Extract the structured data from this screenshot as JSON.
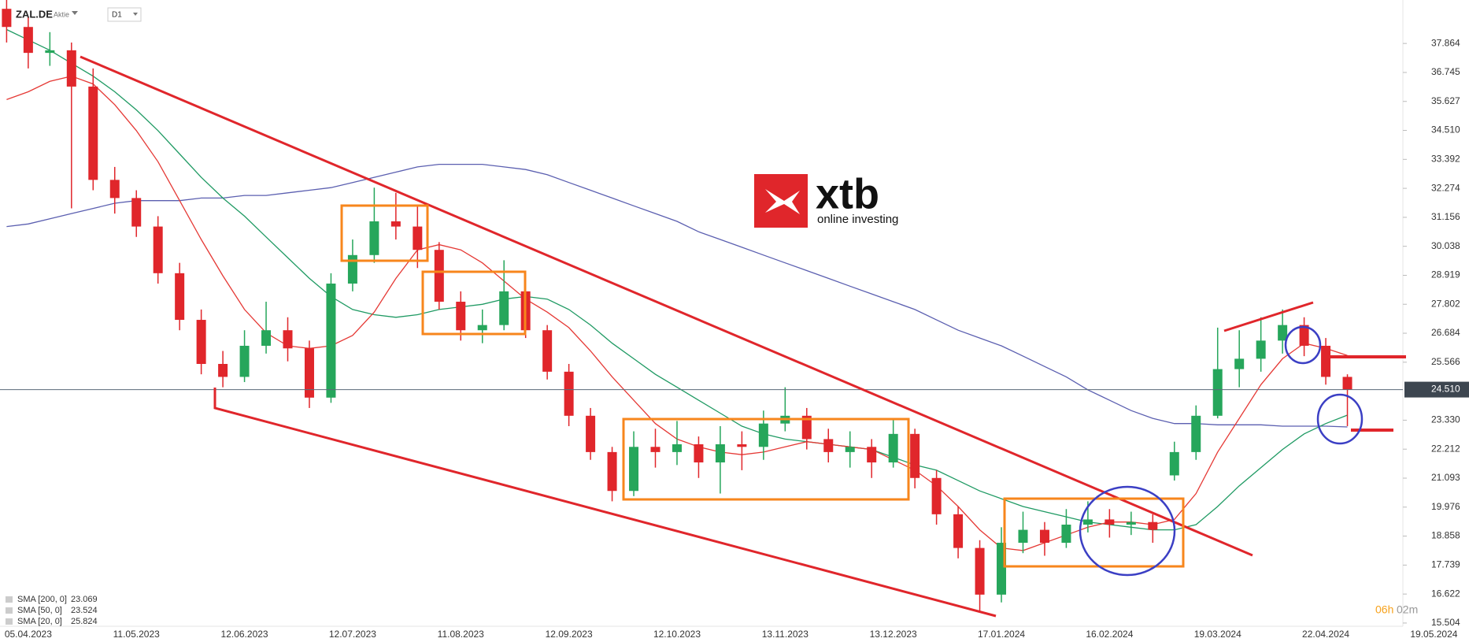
{
  "header": {
    "symbol": "ZAL.DE",
    "kind": "Aktie",
    "timeframe": "D1"
  },
  "logo": {
    "name": "xtb",
    "tagline": "online investing"
  },
  "countdown": {
    "hours": "06h",
    "minutes": "02m"
  },
  "chart_data": {
    "type": "candlestick",
    "categories": [
      null,
      "05.04.2023",
      null,
      null,
      null,
      null,
      "11.05.2023",
      null,
      null,
      null,
      null,
      "12.06.2023",
      null,
      null,
      null,
      null,
      "12.07.2023",
      null,
      null,
      null,
      null,
      "11.08.2023",
      null,
      null,
      null,
      null,
      "12.09.2023",
      null,
      null,
      null,
      null,
      "12.10.2023",
      null,
      null,
      null,
      null,
      "13.11.2023",
      null,
      null,
      null,
      null,
      "13.12.2023",
      null,
      null,
      null,
      null,
      "17.01.2024",
      null,
      null,
      null,
      null,
      "16.02.2024",
      null,
      null,
      null,
      null,
      "19.03.2024",
      null,
      null,
      null,
      null,
      "22.04.2024",
      null,
      null,
      null,
      null,
      "19.05.2024"
    ],
    "open": [
      39.2,
      38.5,
      37.5,
      37.6,
      36.2,
      32.6,
      31.9,
      30.8,
      29.0,
      27.2,
      25.5,
      25.0,
      26.2,
      26.8,
      26.1,
      24.2,
      28.6,
      29.7,
      31.0,
      30.8,
      29.9,
      27.9,
      26.8,
      27.0,
      28.3,
      26.8,
      25.2,
      23.5,
      22.1,
      20.6,
      22.3,
      22.1,
      22.4,
      21.7,
      22.4,
      22.3,
      23.2,
      23.5,
      22.6,
      22.1,
      22.3,
      21.7,
      22.8,
      21.1,
      19.7,
      18.4,
      16.6,
      18.6,
      19.1,
      18.6,
      19.3,
      19.5,
      19.3,
      19.4,
      21.2,
      22.1,
      23.5,
      25.3,
      25.7,
      26.4,
      27.0,
      26.2,
      25.0,
      null,
      null,
      null,
      null
    ],
    "high": [
      39.6,
      38.9,
      38.3,
      37.9,
      36.9,
      33.1,
      32.2,
      31.2,
      29.4,
      27.6,
      26.0,
      26.8,
      27.9,
      27.3,
      26.4,
      29.0,
      30.3,
      32.3,
      32.1,
      31.6,
      30.2,
      28.3,
      27.6,
      29.5,
      28.6,
      27.0,
      25.5,
      23.8,
      22.3,
      22.9,
      23.0,
      23.3,
      22.7,
      23.1,
      22.9,
      23.7,
      24.6,
      23.8,
      23.0,
      22.9,
      22.6,
      23.4,
      23.0,
      21.4,
      20.0,
      18.7,
      19.2,
      19.8,
      19.4,
      19.9,
      20.2,
      19.9,
      19.8,
      19.7,
      22.5,
      23.9,
      26.9,
      26.8,
      27.3,
      27.6,
      27.3,
      26.5,
      25.1,
      null,
      null,
      null,
      null
    ],
    "low": [
      37.9,
      36.9,
      37.0,
      31.5,
      32.2,
      31.3,
      30.4,
      28.6,
      26.8,
      25.1,
      24.6,
      24.8,
      25.9,
      25.6,
      23.8,
      24.0,
      28.3,
      29.4,
      30.3,
      29.2,
      27.6,
      26.4,
      26.3,
      26.8,
      26.5,
      24.9,
      23.1,
      21.8,
      20.2,
      20.4,
      21.5,
      21.6,
      21.1,
      20.5,
      21.4,
      21.8,
      22.9,
      22.2,
      21.7,
      21.5,
      21.1,
      21.5,
      20.7,
      19.3,
      18.0,
      15.9,
      16.3,
      18.2,
      18.1,
      18.4,
      19.0,
      18.8,
      18.9,
      18.6,
      21.0,
      21.8,
      23.4,
      24.6,
      25.2,
      25.9,
      25.8,
      24.7,
      23.1,
      null,
      null,
      null,
      null
    ],
    "close": [
      38.5,
      37.5,
      37.6,
      36.2,
      32.6,
      31.9,
      30.8,
      29.0,
      27.2,
      25.5,
      25.0,
      26.2,
      26.8,
      26.1,
      24.2,
      28.6,
      29.7,
      31.0,
      30.8,
      29.9,
      27.9,
      26.8,
      27.0,
      28.3,
      26.8,
      25.2,
      23.5,
      22.1,
      20.6,
      22.3,
      22.1,
      22.4,
      21.7,
      22.4,
      22.3,
      23.2,
      23.5,
      22.6,
      22.1,
      22.3,
      21.7,
      22.8,
      21.1,
      19.7,
      18.4,
      16.6,
      18.6,
      19.1,
      18.6,
      19.3,
      19.5,
      19.3,
      19.4,
      19.1,
      22.1,
      23.5,
      25.3,
      25.7,
      26.4,
      27.0,
      26.2,
      25.0,
      24.51,
      null,
      null,
      null,
      null
    ],
    "up_color": "#26a65b",
    "down_color": "#e0262b",
    "series": [
      {
        "name": "SMA [200, 0]",
        "color": "#5b5fb0",
        "values": [
          30.8,
          30.9,
          31.1,
          31.3,
          31.5,
          31.7,
          31.8,
          31.8,
          31.8,
          31.9,
          31.9,
          32.0,
          32.0,
          32.1,
          32.2,
          32.3,
          32.5,
          32.7,
          32.9,
          33.1,
          33.2,
          33.2,
          33.2,
          33.1,
          33.0,
          32.8,
          32.5,
          32.2,
          31.9,
          31.6,
          31.3,
          31.0,
          30.6,
          30.3,
          30.0,
          29.7,
          29.4,
          29.1,
          28.8,
          28.5,
          28.2,
          27.9,
          27.6,
          27.2,
          26.8,
          26.5,
          26.2,
          25.8,
          25.4,
          25.0,
          24.5,
          24.1,
          23.7,
          23.4,
          23.2,
          23.2,
          23.15,
          23.15,
          23.15,
          23.1,
          23.1,
          23.1,
          23.069,
          null,
          null,
          null,
          null
        ]
      },
      {
        "name": "SMA [50, 0]",
        "color": "#1f9a63",
        "values": [
          38.4,
          38.0,
          37.6,
          37.1,
          36.6,
          36.0,
          35.3,
          34.5,
          33.6,
          32.7,
          31.9,
          31.2,
          30.4,
          29.6,
          28.8,
          28.1,
          27.6,
          27.4,
          27.3,
          27.4,
          27.6,
          27.7,
          27.8,
          28.0,
          28.1,
          28.0,
          27.6,
          27.0,
          26.3,
          25.7,
          25.1,
          24.6,
          24.1,
          23.6,
          23.1,
          22.8,
          22.6,
          22.5,
          22.4,
          22.3,
          22.2,
          21.9,
          21.6,
          21.4,
          21.0,
          20.6,
          20.3,
          20.0,
          19.8,
          19.6,
          19.4,
          19.3,
          19.2,
          19.1,
          19.1,
          19.3,
          20.0,
          20.8,
          21.5,
          22.2,
          22.8,
          23.2,
          23.524,
          null,
          null,
          null,
          null
        ]
      },
      {
        "name": "SMA [20, 0]",
        "color": "#e53935",
        "values": [
          35.7,
          36.0,
          36.4,
          36.6,
          36.3,
          35.5,
          34.5,
          33.3,
          31.8,
          30.3,
          28.9,
          27.6,
          26.7,
          26.2,
          26.1,
          26.2,
          26.6,
          27.5,
          28.8,
          29.9,
          30.1,
          29.9,
          29.4,
          28.7,
          28.0,
          27.5,
          26.9,
          26.0,
          25.0,
          24.1,
          23.2,
          22.6,
          22.3,
          22.1,
          22.0,
          22.1,
          22.3,
          22.5,
          22.4,
          22.3,
          22.2,
          21.8,
          21.4,
          20.8,
          20.0,
          19.1,
          18.4,
          18.3,
          18.6,
          18.9,
          19.2,
          19.4,
          19.4,
          19.3,
          19.5,
          20.5,
          22.1,
          23.4,
          24.7,
          25.7,
          26.3,
          26.1,
          25.824,
          null,
          null,
          null,
          null
        ]
      }
    ],
    "last_price": {
      "value": 24.51,
      "label": "24.510"
    },
    "ylim": [
      15.38,
      39.54
    ],
    "yticks": [
      37.864,
      36.745,
      35.627,
      {
        "value": 34.51,
        "label": "34.510"
      },
      33.392,
      32.274,
      31.156,
      30.038,
      28.919,
      27.802,
      26.684,
      25.566,
      {
        "value": 23.33,
        "label": "23.330"
      },
      22.212,
      21.093,
      19.976,
      18.858,
      17.739,
      16.622,
      15.504
    ]
  }
}
